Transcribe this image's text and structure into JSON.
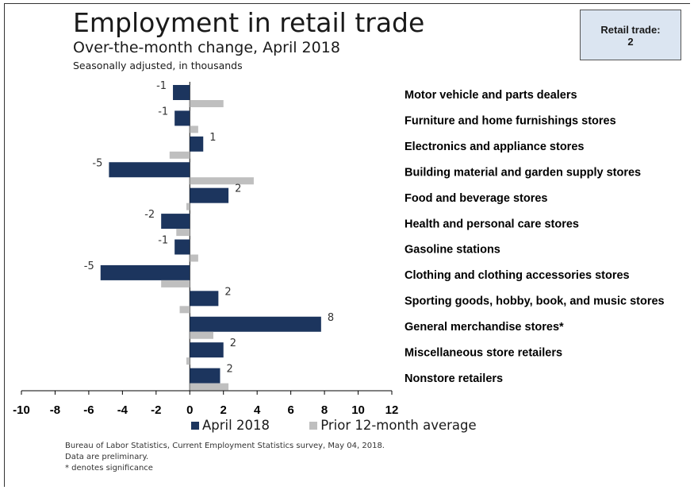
{
  "title": "Employment in retail trade",
  "subtitle": "Over-the-month change, April 2018",
  "subtitle2": "Seasonally adjusted, in thousands",
  "callout": {
    "line1": "Retail trade:",
    "line2": "2"
  },
  "legend": [
    {
      "name": "April 2018",
      "color": "#1c355e"
    },
    {
      "name": "Prior 12-month average",
      "color": "#bfbfbf"
    }
  ],
  "footer": [
    "Bureau of Labor Statistics, Current Employment Statistics survey, May 04, 2018.",
    "Data are preliminary.",
    "* denotes significance"
  ],
  "chart_data": {
    "type": "bar",
    "orientation": "horizontal",
    "xlim": [
      -10,
      12
    ],
    "xticks": [
      -10,
      -8,
      -6,
      -4,
      -2,
      0,
      2,
      4,
      6,
      8,
      10,
      12
    ],
    "grid": false,
    "legend_position": "bottom",
    "categories": [
      "Motor vehicle and parts dealers",
      "Furniture and home furnishings stores",
      "Electronics and appliance stores",
      "Building material and garden supply stores",
      "Food and beverage stores",
      "Health and personal care stores",
      "Gasoline stations",
      "Clothing and clothing accessories stores",
      "Sporting goods, hobby, book, and music stores",
      "General merchandise stores*",
      "Miscellaneous store retailers",
      "Nonstore retailers"
    ],
    "series": [
      {
        "name": "April 2018",
        "color": "#1c355e",
        "values": [
          -1.0,
          -0.9,
          0.8,
          -4.8,
          2.3,
          -1.7,
          -0.9,
          -5.3,
          1.7,
          7.8,
          2.0,
          1.8
        ],
        "labels": [
          "-1",
          "-1",
          "1",
          "-5",
          "2",
          "-2",
          "-1",
          "-5",
          "2",
          "8",
          "2",
          "2"
        ]
      },
      {
        "name": "Prior 12-month average",
        "color": "#bfbfbf",
        "values": [
          2.0,
          0.5,
          -1.2,
          3.8,
          -0.2,
          -0.8,
          0.5,
          -1.7,
          -0.6,
          1.4,
          -0.2,
          2.3
        ]
      }
    ]
  }
}
